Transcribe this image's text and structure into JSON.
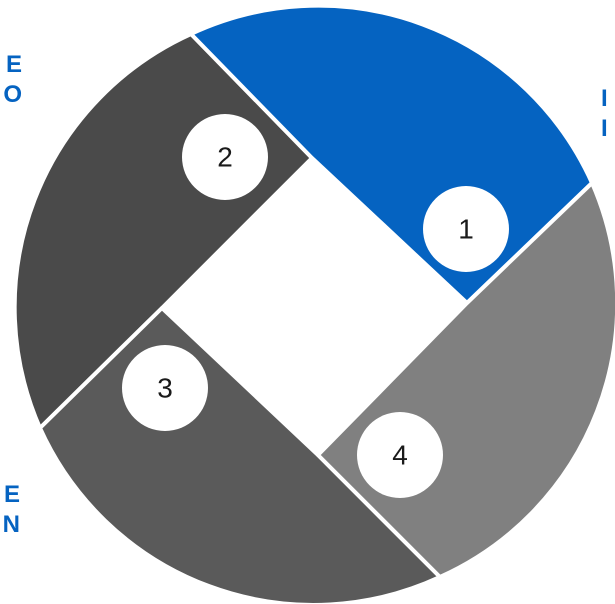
{
  "colors": {
    "segment_1": "#0563c1",
    "segment_2": "#4a4a4a",
    "segment_3": "#5a5a5a",
    "segment_4": "#808080",
    "badge": "#ffffff",
    "text_accent": "#0563c1"
  },
  "segments": [
    {
      "number": "1"
    },
    {
      "number": "2"
    },
    {
      "number": "3"
    },
    {
      "number": "4"
    }
  ],
  "side_text": {
    "top_left": [
      "E",
      "O"
    ],
    "top_right": [
      "I",
      "I"
    ],
    "bottom_left": [
      "E",
      "N"
    ]
  }
}
